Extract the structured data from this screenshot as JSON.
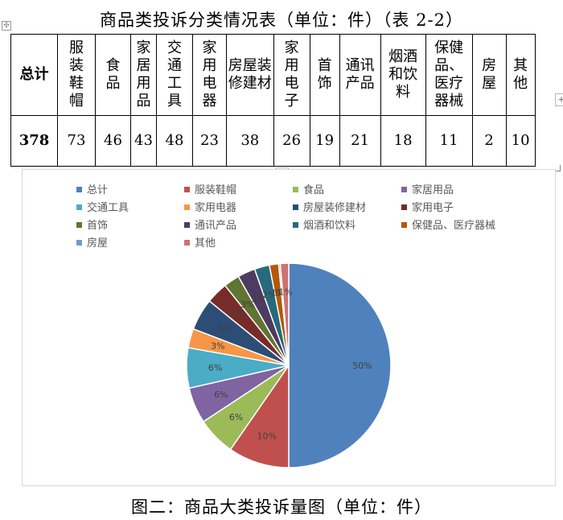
{
  "title": "商品类投诉分类情况表（单位：件）（表 2-2）",
  "table": {
    "headers": [
      "总计",
      "服装鞋帽",
      "食品",
      "家居用品",
      "交通工具",
      "家用电器",
      "房屋装修建材",
      "家用电子",
      "首饰",
      "通讯产品",
      "烟酒和饮料",
      "保健品、医疗器械",
      "房屋",
      "其他"
    ],
    "values": [
      "378",
      "73",
      "46",
      "43",
      "48",
      "23",
      "38",
      "26",
      "19",
      "21",
      "18",
      "11",
      "2",
      "10"
    ]
  },
  "chart_data": {
    "type": "pie",
    "categories": [
      "总计",
      "服装鞋帽",
      "食品",
      "家居用品",
      "交通工具",
      "家用电器",
      "房屋装修建材",
      "家用电子",
      "首饰",
      "通讯产品",
      "烟酒和饮料",
      "保健品、医疗器械",
      "房屋",
      "其他"
    ],
    "values": [
      378,
      73,
      46,
      43,
      48,
      23,
      38,
      26,
      19,
      21,
      18,
      11,
      2,
      10
    ],
    "labels": [
      "50%",
      "10%",
      "6%",
      "6%",
      "6%",
      "3%",
      "5%",
      "3%",
      "3%",
      "3%",
      "2%",
      "1%",
      "0%",
      "1%"
    ],
    "colors": [
      "#4F81BD",
      "#C0504D",
      "#9BBB59",
      "#8064A2",
      "#4BACC6",
      "#F79646",
      "#2C4D75",
      "#772C2A",
      "#5F7530",
      "#4D3B62",
      "#276A7C",
      "#B65708",
      "#729ACA",
      "#CD7371"
    ],
    "legend_position": "top"
  },
  "caption": "图二：商品大类投诉量图（单位：件）"
}
